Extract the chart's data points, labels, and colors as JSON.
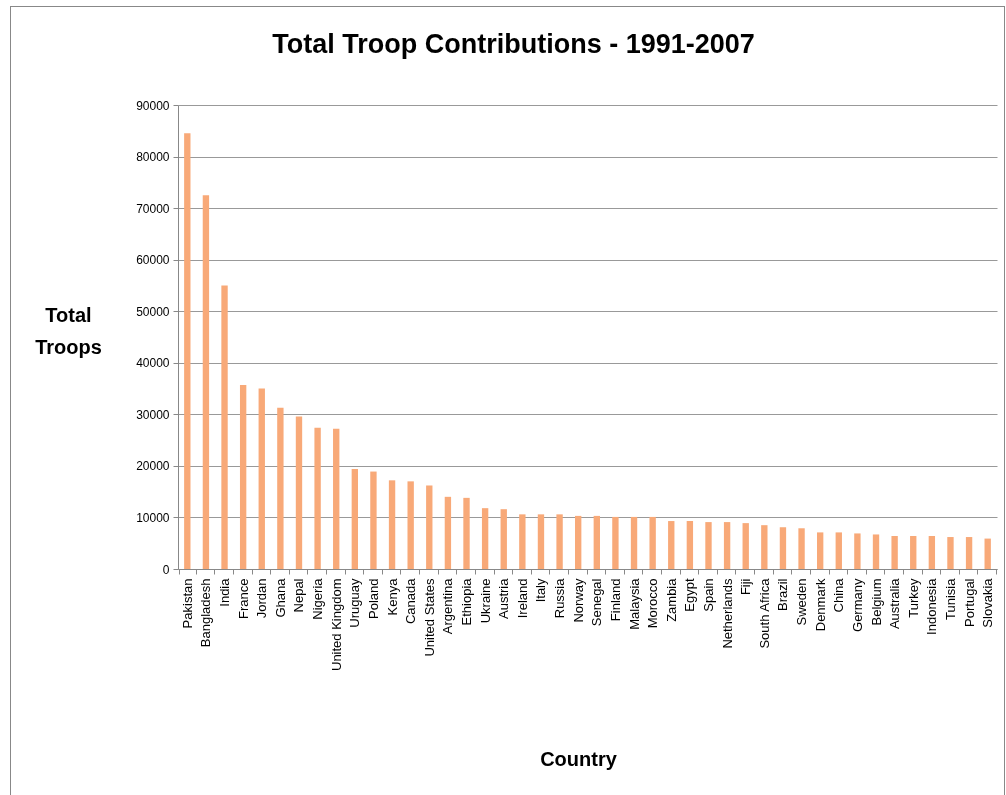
{
  "chart_data": {
    "type": "bar",
    "title": "Total Troop Contributions - 1991-2007",
    "xlabel": "Country",
    "ylabel": "Total Troops",
    "categories": [
      "Pakistan",
      "Bangladesh",
      "India",
      "France",
      "Jordan",
      "Ghana",
      "Nepal",
      "Nigeria",
      "United Kingdom",
      "Uruguay",
      "Poland",
      "Kenya",
      "Canada",
      "United States",
      "Argentina",
      "Ethiopia",
      "Ukraine",
      "Austria",
      "Ireland",
      "Italy",
      "Russia",
      "Norway",
      "Senegal",
      "Finland",
      "Malaysia",
      "Morocco",
      "Zambia",
      "Egypt",
      "Spain",
      "Netherlands",
      "Fiji",
      "South Africa",
      "Brazil",
      "Sweden",
      "Denmark",
      "China",
      "Germany",
      "Belgium",
      "Australia",
      "Turkey",
      "Indonesia",
      "Tunisia",
      "Portugal",
      "Slovakia"
    ],
    "values": [
      84500,
      72500,
      55000,
      35700,
      35000,
      31300,
      29600,
      27400,
      27200,
      19400,
      18900,
      17200,
      17000,
      16200,
      14000,
      13800,
      11800,
      11600,
      10600,
      10600,
      10600,
      10300,
      10300,
      10100,
      10100,
      10100,
      9300,
      9300,
      9100,
      9100,
      8900,
      8500,
      8100,
      7900,
      7100,
      7100,
      6900,
      6700,
      6400,
      6400,
      6400,
      6200,
      6200,
      5900
    ],
    "color": "#f8a978",
    "ylim": [
      0,
      90000
    ],
    "yticks": [
      0,
      10000,
      20000,
      30000,
      40000,
      50000,
      60000,
      70000,
      80000,
      90000
    ],
    "grid": "y"
  }
}
